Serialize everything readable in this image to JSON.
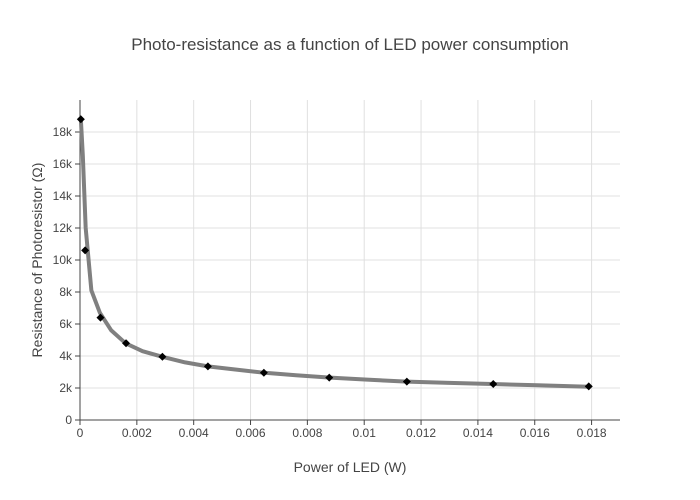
{
  "chart_data": {
    "type": "line",
    "title": "Photo-resistance as a function of LED power consumption",
    "xlabel": "Power of LED (W)",
    "ylabel": "Resistance of Photoresistor (Ω)",
    "xlim": [
      0,
      0.019
    ],
    "ylim": [
      0,
      20000
    ],
    "grid": true,
    "x_ticks": [
      {
        "value": 0,
        "label": "0"
      },
      {
        "value": 0.002,
        "label": "0.002"
      },
      {
        "value": 0.004,
        "label": "0.004"
      },
      {
        "value": 0.006,
        "label": "0.006"
      },
      {
        "value": 0.008,
        "label": "0.008"
      },
      {
        "value": 0.01,
        "label": "0.01"
      },
      {
        "value": 0.012,
        "label": "0.012"
      },
      {
        "value": 0.014,
        "label": "0.014"
      },
      {
        "value": 0.016,
        "label": "0.016"
      },
      {
        "value": 0.018,
        "label": "0.018"
      }
    ],
    "y_ticks": [
      {
        "value": 0,
        "label": "0"
      },
      {
        "value": 2000,
        "label": "2k"
      },
      {
        "value": 4000,
        "label": "4k"
      },
      {
        "value": 6000,
        "label": "6k"
      },
      {
        "value": 8000,
        "label": "8k"
      },
      {
        "value": 10000,
        "label": "10k"
      },
      {
        "value": 12000,
        "label": "12k"
      },
      {
        "value": 14000,
        "label": "14k"
      },
      {
        "value": 16000,
        "label": "16k"
      },
      {
        "value": 18000,
        "label": "18k"
      }
    ],
    "series": [
      {
        "kind": "markers",
        "color": "#000000",
        "marker": "diamond",
        "x": [
          3e-05,
          0.00018,
          0.00072,
          0.00162,
          0.0029,
          0.0045,
          0.00647,
          0.00877,
          0.0115,
          0.01454,
          0.0179
        ],
        "y": [
          18800,
          10600,
          6400,
          4800,
          3950,
          3350,
          2950,
          2650,
          2400,
          2250,
          2100
        ]
      },
      {
        "kind": "line",
        "color": "#808080",
        "x": [
          3e-05,
          0.0001,
          0.0002,
          0.0004,
          0.0007,
          0.0011,
          0.0016,
          0.0022,
          0.0029,
          0.0037,
          0.0045,
          0.0055,
          0.0065,
          0.0076,
          0.0088,
          0.0101,
          0.0115,
          0.013,
          0.0145,
          0.0161,
          0.0179
        ],
        "y": [
          18800,
          16500,
          12000,
          8100,
          6700,
          5600,
          4800,
          4300,
          3950,
          3600,
          3350,
          3150,
          2950,
          2800,
          2650,
          2520,
          2400,
          2320,
          2250,
          2170,
          2080
        ]
      }
    ]
  }
}
